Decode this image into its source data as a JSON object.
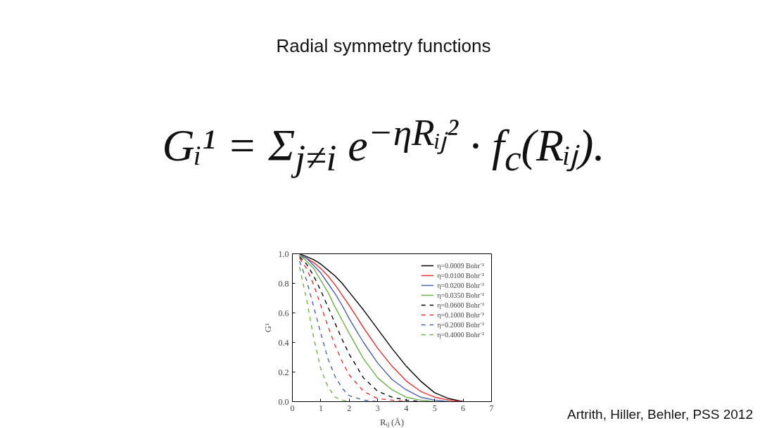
{
  "chart_data": {
    "type": "line",
    "title": "Radial symmetry functions",
    "subtitle": "Gᵢ¹ = Σ$_{j≠i}$ e$^{−ηRᵢⱼ²}$ · f$_{c}$(Rᵢⱼ).",
    "annotations": [
      "Artrith, Hiller, Behler, PSS 2012"
    ],
    "xlabel": "Rᵢⱼ (Å)",
    "ylabel": "G¹",
    "xlim": [
      0,
      7
    ],
    "xticks": [
      0,
      1,
      2,
      3,
      4,
      5,
      6,
      7
    ],
    "ylim": [
      0,
      1
    ],
    "yticks": [
      {
        "value": 0,
        "label": "0.0"
      },
      {
        "value": 0.2,
        "label": "0.2"
      },
      {
        "value": 0.4,
        "label": "0.4"
      },
      {
        "value": 0.6,
        "label": "0.6"
      },
      {
        "value": 0.8,
        "label": "0.8"
      },
      {
        "value": 1,
        "label": "1.0"
      }
    ],
    "grid": false,
    "legend": "top right",
    "line_style": "solid",
    "marker": "none",
    "x": [
      0.25,
      0.5,
      0.75,
      1,
      1.25,
      1.5,
      1.75,
      2,
      2.5,
      3,
      3.5,
      4,
      4.5,
      5,
      5.5,
      6
    ],
    "series": [
      {
        "name": "η=0.0009 Bohr⁻²",
        "color": "#000000",
        "values": [
          1.0,
          0.98,
          0.96,
          0.93,
          0.89,
          0.85,
          0.8,
          0.74,
          0.62,
          0.49,
          0.36,
          0.24,
          0.14,
          0.06,
          0.02,
          0.0
        ]
      },
      {
        "name": "η=0.0100 Bohr⁻²",
        "color": "#e8312f",
        "values": [
          0.99,
          0.97,
          0.94,
          0.9,
          0.85,
          0.79,
          0.72,
          0.65,
          0.5,
          0.36,
          0.24,
          0.14,
          0.07,
          0.03,
          0.01,
          0.0
        ]
      },
      {
        "name": "η=0.0200 Bohr⁻²",
        "color": "#4a5fb0",
        "values": [
          0.99,
          0.97,
          0.92,
          0.87,
          0.8,
          0.73,
          0.65,
          0.56,
          0.4,
          0.26,
          0.15,
          0.08,
          0.03,
          0.01,
          0.0,
          null
        ]
      },
      {
        "name": "η=0.0350 Bohr⁻²",
        "color": "#6db34a",
        "values": [
          0.99,
          0.95,
          0.9,
          0.82,
          0.74,
          0.64,
          0.55,
          0.46,
          0.29,
          0.16,
          0.08,
          0.03,
          0.01,
          0.0,
          null,
          null
        ]
      },
      {
        "name": "η=0.0600 Bohr⁻²",
        "color": "#000000",
        "line_style": "dashed",
        "values": [
          0.98,
          0.93,
          0.85,
          0.75,
          0.64,
          0.53,
          0.42,
          0.32,
          0.16,
          0.07,
          0.03,
          0.01,
          0.0,
          null,
          null,
          null
        ]
      },
      {
        "name": "η=0.1000 Bohr⁻²",
        "color": "#e8312f",
        "line_style": "dashed",
        "values": [
          0.97,
          0.9,
          0.79,
          0.65,
          0.51,
          0.38,
          0.27,
          0.18,
          0.07,
          0.02,
          0.01,
          0.0,
          null,
          null,
          null,
          null
        ]
      },
      {
        "name": "η=0.2000 Bohr⁻²",
        "color": "#4a5fb0",
        "line_style": "dashed",
        "values": [
          0.95,
          0.82,
          0.64,
          0.46,
          0.29,
          0.17,
          0.09,
          0.04,
          0.01,
          0.0,
          null,
          null,
          null,
          null,
          null,
          null
        ]
      },
      {
        "name": "η=0.4000 Bohr⁻²",
        "color": "#6db34a",
        "line_style": "dashed",
        "values": [
          0.91,
          0.69,
          0.43,
          0.22,
          0.1,
          0.03,
          0.01,
          0.0,
          null,
          null,
          null,
          null,
          null,
          null,
          null,
          null
        ]
      }
    ]
  }
}
